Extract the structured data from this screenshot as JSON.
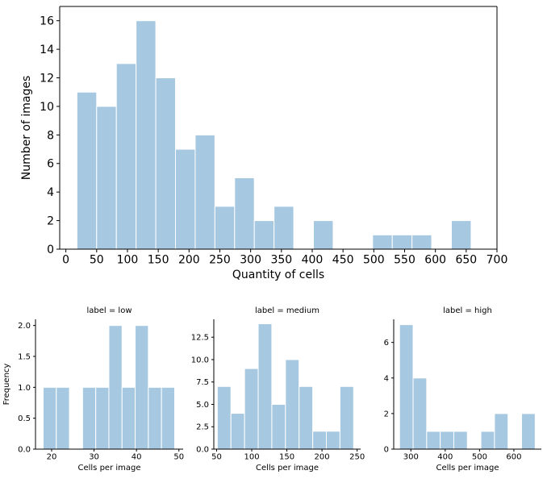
{
  "colors": {
    "bar": "#a6c8e1",
    "bar_edge": "#ffffff",
    "axis": "#000000"
  },
  "chart_data": [
    {
      "type": "bar",
      "title": "",
      "xlabel": "Quantity of cells",
      "ylabel": "Number of images",
      "xlim": [
        -10,
        700
      ],
      "ylim": [
        0,
        17
      ],
      "xticks": [
        0,
        50,
        100,
        150,
        200,
        250,
        300,
        350,
        400,
        450,
        500,
        550,
        600,
        650,
        700
      ],
      "yticks": [
        0,
        2,
        4,
        6,
        8,
        10,
        12,
        14,
        16
      ],
      "bin_edges": [
        18,
        50,
        82,
        114,
        146,
        178,
        210,
        242,
        274,
        306,
        338,
        370,
        402,
        434,
        466,
        498,
        530,
        562,
        594,
        626,
        658
      ],
      "values": [
        11,
        10,
        13,
        16,
        12,
        7,
        8,
        3,
        5,
        2,
        3,
        0,
        2,
        0,
        0,
        1,
        1,
        1,
        0,
        2
      ],
      "grid": false,
      "legend": "none"
    },
    {
      "type": "bar",
      "title": "label = low",
      "xlabel": "Cells per image",
      "ylabel": "Frequency",
      "xlim": [
        16.2,
        51
      ],
      "ylim": [
        0,
        2.1
      ],
      "xticks": [
        20,
        30,
        40,
        50
      ],
      "yticks": [
        0.0,
        0.5,
        1.0,
        1.5,
        2.0
      ],
      "ytick_labels": [
        "0.0",
        "0.5",
        "1.0",
        "1.5",
        "2.0"
      ],
      "bin_edges": [
        18,
        21.1,
        24.2,
        27.3,
        30.4,
        33.5,
        36.6,
        39.7,
        42.8,
        45.9,
        49
      ],
      "values": [
        1,
        1,
        0,
        1,
        1,
        2,
        1,
        2,
        1,
        1
      ],
      "grid": false,
      "legend": "none"
    },
    {
      "type": "bar",
      "title": "label = medium",
      "xlabel": "Cells per image",
      "ylabel": "",
      "xlim": [
        46,
        255
      ],
      "ylim": [
        0,
        14.5
      ],
      "xticks": [
        50,
        100,
        150,
        200,
        250
      ],
      "yticks": [
        0.0,
        2.5,
        5.0,
        7.5,
        10.0,
        12.5
      ],
      "ytick_labels": [
        "0.0",
        "2.5",
        "5.0",
        "7.5",
        "10.0",
        "12.5"
      ],
      "bin_edges": [
        51,
        70.4,
        89.8,
        109.2,
        128.6,
        148,
        167.4,
        186.8,
        206.2,
        225.6,
        245
      ],
      "values": [
        7,
        4,
        9,
        14,
        5,
        10,
        7,
        2,
        2,
        7
      ],
      "grid": false,
      "legend": "none"
    },
    {
      "type": "bar",
      "title": "label = high",
      "xlabel": "Cells per image",
      "ylabel": "",
      "xlim": [
        250,
        680
      ],
      "ylim": [
        0,
        7.3
      ],
      "xticks": [
        300,
        400,
        500,
        600
      ],
      "yticks": [
        0,
        2,
        4,
        6
      ],
      "bin_edges": [
        267,
        306.5,
        346,
        385.5,
        425,
        464.5,
        504,
        543.5,
        583,
        622.5,
        662
      ],
      "values": [
        7,
        4,
        1,
        1,
        1,
        0,
        1,
        2,
        0,
        2
      ],
      "grid": false,
      "legend": "none"
    }
  ]
}
